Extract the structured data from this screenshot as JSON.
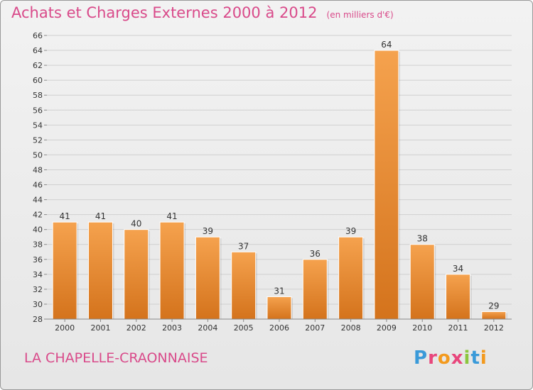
{
  "header": {
    "title": "Achats et Charges Externes 2000 à 2012",
    "unit": "(en milliers d'€)"
  },
  "footer": {
    "place": "LA CHAPELLE-CRAONNAISE",
    "logo": "Proxiti"
  },
  "colors": {
    "bar_light": "#f5a24e",
    "bar_dark": "#d4731c",
    "title": "#d94a8a",
    "logo_letters": [
      "#3a9ad9",
      "#e8467c",
      "#f39a1e",
      "#e8467c",
      "#8cc63f",
      "#3a9ad9",
      "#f39a1e"
    ]
  },
  "chart_data": {
    "type": "bar",
    "categories": [
      "2000",
      "2001",
      "2002",
      "2003",
      "2004",
      "2005",
      "2006",
      "2007",
      "2008",
      "2009",
      "2010",
      "2011",
      "2012"
    ],
    "values": [
      41,
      41,
      40,
      41,
      39,
      37,
      31,
      36,
      39,
      64,
      38,
      34,
      29
    ],
    "ylim": [
      28,
      66
    ],
    "yticks": [
      28,
      30,
      32,
      34,
      36,
      38,
      40,
      42,
      44,
      46,
      48,
      50,
      52,
      54,
      56,
      58,
      60,
      62,
      64,
      66
    ],
    "title": "Achats et Charges Externes 2000 à 2012",
    "xlabel": "",
    "ylabel": "",
    "grid": true,
    "data_labels": true
  }
}
